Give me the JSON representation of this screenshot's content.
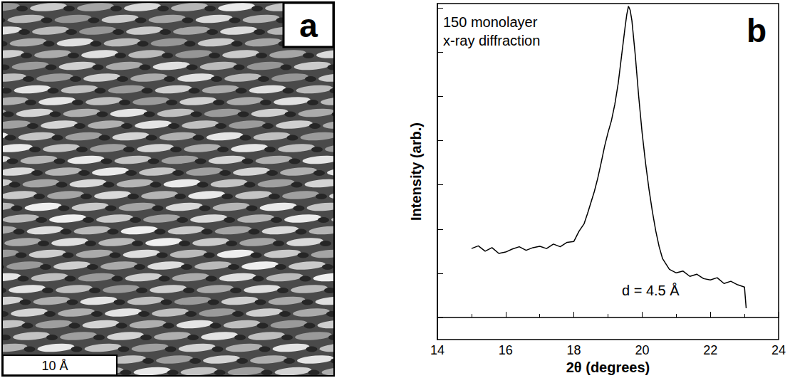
{
  "panel_a": {
    "panel_label": "a",
    "scale_bar": "10 Å"
  },
  "chart_data": {
    "type": "line",
    "panel_label": "b",
    "annotations": [
      "150 monolayer\nx-ray diffraction",
      "d = 4.5 Å"
    ],
    "x_label": "2θ (degrees)",
    "y_label": "Intensity (arb.)",
    "x": [
      15.0,
      15.2,
      15.4,
      15.6,
      15.8,
      16.0,
      16.2,
      16.4,
      16.6,
      16.8,
      17.0,
      17.2,
      17.4,
      17.6,
      17.8,
      18.0,
      18.15,
      18.3,
      18.4,
      18.5,
      18.6,
      18.7,
      18.8,
      18.9,
      19.0,
      19.1,
      19.2,
      19.3,
      19.4,
      19.5,
      19.55,
      19.6,
      19.65,
      19.7,
      19.8,
      19.9,
      20.0,
      20.1,
      20.2,
      20.3,
      20.4,
      20.5,
      20.6,
      20.8,
      21.0,
      21.2,
      21.4,
      21.6,
      21.8,
      22.0,
      22.2,
      22.4,
      22.6,
      22.8,
      23.0,
      23.05
    ],
    "values": [
      1.56,
      1.62,
      1.5,
      1.58,
      1.45,
      1.48,
      1.55,
      1.6,
      1.52,
      1.58,
      1.61,
      1.56,
      1.66,
      1.6,
      1.7,
      1.72,
      1.95,
      2.12,
      2.35,
      2.6,
      2.85,
      3.15,
      3.5,
      3.87,
      4.18,
      4.45,
      4.82,
      5.3,
      5.93,
      6.56,
      6.85,
      7.04,
      6.95,
      6.72,
      5.93,
      5.0,
      4.18,
      3.5,
      2.91,
      2.4,
      1.96,
      1.6,
      1.33,
      1.09,
      1.01,
      1.05,
      0.93,
      0.98,
      0.88,
      0.85,
      0.9,
      0.77,
      0.82,
      0.74,
      0.69,
      0.21
    ],
    "color": "#000000",
    "xlim": [
      14,
      24
    ],
    "xticks": [
      14,
      16,
      18,
      20,
      22,
      24
    ],
    "ylim": [
      -0.5,
      7.1
    ],
    "yticks": [
      0,
      1,
      2,
      3,
      4,
      5,
      6,
      7
    ],
    "tick_labels": "x",
    "grid": false
  }
}
